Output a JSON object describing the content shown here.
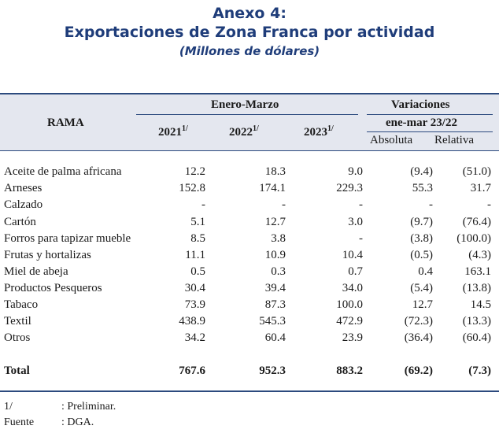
{
  "title": {
    "line1": "Anexo 4:",
    "line2": "Exportaciones de Zona Franca por actividad",
    "line3": "(Millones de dólares)"
  },
  "header": {
    "rama": "RAMA",
    "period": "Enero-Marzo",
    "y2021": "2021",
    "y2022": "2022",
    "y2023": "2023",
    "sup": "1/",
    "variaciones": "Variaciones",
    "subperiod": "ene-mar 23/22",
    "absoluta": "Absoluta",
    "relativa": "Relativa"
  },
  "rows": [
    {
      "rama": "Aceite de palma africana",
      "v2021": "12.2",
      "v2022": "18.3",
      "v2023": "9.0",
      "abs": "(9.4)",
      "rel": "(51.0)"
    },
    {
      "rama": "Arneses",
      "v2021": "152.8",
      "v2022": "174.1",
      "v2023": "229.3",
      "abs": "55.3",
      "rel": "31.7"
    },
    {
      "rama": "Calzado",
      "v2021": "-",
      "v2022": "-",
      "v2023": "-",
      "abs": "-",
      "rel": "-"
    },
    {
      "rama": "Cartón",
      "v2021": "5.1",
      "v2022": "12.7",
      "v2023": "3.0",
      "abs": "(9.7)",
      "rel": "(76.4)"
    },
    {
      "rama": "Forros para tapizar mueble",
      "v2021": "8.5",
      "v2022": "3.8",
      "v2023": "-",
      "abs": "(3.8)",
      "rel": "(100.0)"
    },
    {
      "rama": "Frutas y hortalizas",
      "v2021": "11.1",
      "v2022": "10.9",
      "v2023": "10.4",
      "abs": "(0.5)",
      "rel": "(4.3)"
    },
    {
      "rama": "Miel de abeja",
      "v2021": "0.5",
      "v2022": "0.3",
      "v2023": "0.7",
      "abs": "0.4",
      "rel": "163.1"
    },
    {
      "rama": "Productos Pesqueros",
      "v2021": "30.4",
      "v2022": "39.4",
      "v2023": "34.0",
      "abs": "(5.4)",
      "rel": "(13.8)"
    },
    {
      "rama": "Tabaco",
      "v2021": "73.9",
      "v2022": "87.3",
      "v2023": "100.0",
      "abs": "12.7",
      "rel": "14.5"
    },
    {
      "rama": "Textil",
      "v2021": "438.9",
      "v2022": "545.3",
      "v2023": "472.9",
      "abs": "(72.3)",
      "rel": "(13.3)"
    },
    {
      "rama": "Otros",
      "v2021": "34.2",
      "v2022": "60.4",
      "v2023": "23.9",
      "abs": "(36.4)",
      "rel": "(60.4)"
    }
  ],
  "total": {
    "rama": "Total",
    "v2021": "767.6",
    "v2022": "952.3",
    "v2023": "883.2",
    "abs": "(69.2)",
    "rel": "(7.3)"
  },
  "notes": [
    {
      "key": "1/",
      "text": ": Preliminar."
    },
    {
      "key": "Fuente",
      "text": ": DGA."
    }
  ]
}
